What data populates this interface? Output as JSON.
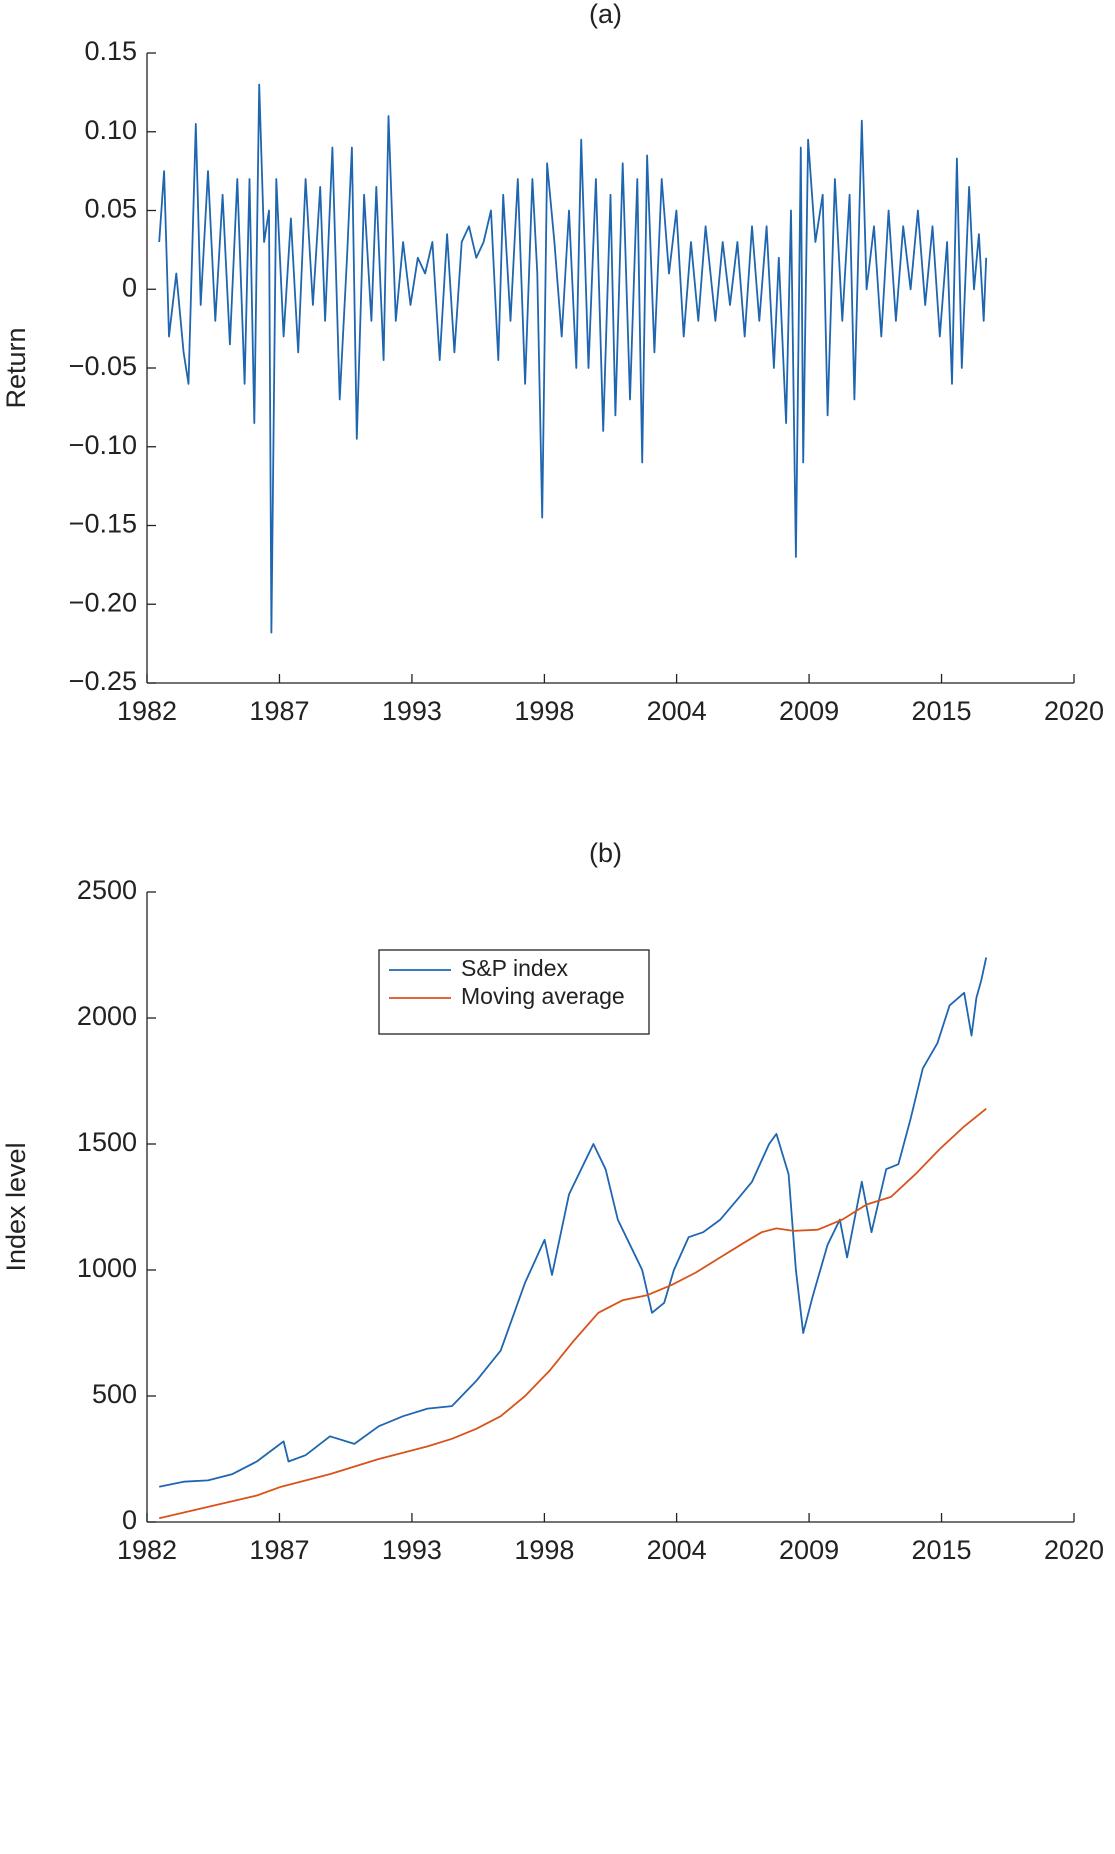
{
  "chart_data": [
    {
      "type": "line",
      "title": "(a)",
      "ylabel": "Return",
      "color": "#1f66b0",
      "xlim": [
        1982,
        2020
      ],
      "xticks": [
        {
          "value": 1982,
          "label": "1982"
        },
        {
          "value": 1987.43,
          "label": "1987"
        },
        {
          "value": 1992.86,
          "label": "1993"
        },
        {
          "value": 1998.29,
          "label": "1998"
        },
        {
          "value": 2003.71,
          "label": "2004"
        },
        {
          "value": 2009.14,
          "label": "2009"
        },
        {
          "value": 2014.57,
          "label": "2015"
        },
        {
          "value": 2020,
          "label": "2020"
        }
      ],
      "ylim": [
        -0.25,
        0.15
      ],
      "yticks": [
        {
          "value": -0.25,
          "label": "−0.25"
        },
        {
          "value": -0.2,
          "label": "−0.20"
        },
        {
          "value": -0.15,
          "label": "−0.15"
        },
        {
          "value": -0.1,
          "label": "−0.10"
        },
        {
          "value": -0.05,
          "label": "−0.05"
        },
        0,
        0.05,
        {
          "value": 0.1,
          "label": "0.10"
        },
        0.15
      ],
      "x": [
        1982.5,
        1982.7,
        1982.9,
        1983.2,
        1983.5,
        1983.7,
        1984.0,
        1984.2,
        1984.5,
        1984.8,
        1985.1,
        1985.4,
        1985.7,
        1986.0,
        1986.2,
        1986.4,
        1986.6,
        1986.8,
        1987.0,
        1987.1,
        1987.3,
        1987.6,
        1987.9,
        1988.2,
        1988.5,
        1988.8,
        1989.1,
        1989.3,
        1989.6,
        1989.9,
        1990.2,
        1990.4,
        1990.6,
        1990.9,
        1991.2,
        1991.4,
        1991.7,
        1991.9,
        1992.2,
        1992.5,
        1992.8,
        1993.1,
        1993.4,
        1993.7,
        1994.0,
        1994.3,
        1994.6,
        1994.9,
        1995.2,
        1995.5,
        1995.8,
        1996.1,
        1996.4,
        1996.6,
        1996.9,
        1997.2,
        1997.5,
        1997.8,
        1998.0,
        1998.2,
        1998.4,
        1998.7,
        1999.0,
        1999.3,
        1999.6,
        1999.8,
        2000.1,
        2000.4,
        2000.7,
        2001.0,
        2001.2,
        2001.5,
        2001.8,
        2002.1,
        2002.3,
        2002.5,
        2002.8,
        2003.1,
        2003.4,
        2003.7,
        2004.0,
        2004.3,
        2004.6,
        2004.9,
        2005.3,
        2005.6,
        2005.9,
        2006.2,
        2006.5,
        2006.8,
        2007.1,
        2007.4,
        2007.7,
        2007.9,
        2008.2,
        2008.4,
        2008.6,
        2008.8,
        2008.9,
        2009.1,
        2009.4,
        2009.7,
        2009.9,
        2010.2,
        2010.5,
        2010.8,
        2011.0,
        2011.3,
        2011.5,
        2011.8,
        2012.1,
        2012.4,
        2012.7,
        2013.0,
        2013.3,
        2013.6,
        2013.9,
        2014.2,
        2014.5,
        2014.8,
        2015.0,
        2015.2,
        2015.4,
        2015.7,
        2015.9,
        2016.1,
        2016.3,
        2016.4
      ],
      "values": [
        0.03,
        0.075,
        -0.03,
        0.01,
        -0.04,
        -0.06,
        0.105,
        -0.01,
        0.075,
        -0.02,
        0.06,
        -0.035,
        0.07,
        -0.06,
        0.07,
        -0.085,
        0.13,
        0.03,
        0.05,
        -0.218,
        0.07,
        -0.03,
        0.045,
        -0.04,
        0.07,
        -0.01,
        0.065,
        -0.02,
        0.09,
        -0.07,
        0.02,
        0.09,
        -0.095,
        0.06,
        -0.02,
        0.065,
        -0.045,
        0.11,
        -0.02,
        0.03,
        -0.01,
        0.02,
        0.01,
        0.03,
        -0.045,
        0.035,
        -0.04,
        0.03,
        0.04,
        0.02,
        0.03,
        0.05,
        -0.045,
        0.06,
        -0.02,
        0.07,
        -0.06,
        0.07,
        0.01,
        -0.145,
        0.08,
        0.03,
        -0.03,
        0.05,
        -0.05,
        0.095,
        -0.05,
        0.07,
        -0.09,
        0.06,
        -0.08,
        0.08,
        -0.07,
        0.07,
        -0.11,
        0.085,
        -0.04,
        0.07,
        0.01,
        0.05,
        -0.03,
        0.03,
        -0.02,
        0.04,
        -0.02,
        0.03,
        -0.01,
        0.03,
        -0.03,
        0.04,
        -0.02,
        0.04,
        -0.05,
        0.02,
        -0.085,
        0.05,
        -0.17,
        0.09,
        -0.11,
        0.095,
        0.03,
        0.06,
        -0.08,
        0.07,
        -0.02,
        0.06,
        -0.07,
        0.107,
        0,
        0.04,
        -0.03,
        0.05,
        -0.02,
        0.04,
        0,
        0.05,
        -0.01,
        0.04,
        -0.03,
        0.03,
        -0.06,
        0.083,
        -0.05,
        0.065,
        0,
        0.035,
        -0.02,
        0.02
      ]
    },
    {
      "type": "line",
      "title": "(b)",
      "ylabel": "Index level",
      "legend": "upper center",
      "xlim": [
        1982,
        2020
      ],
      "xticks": [
        {
          "value": 1982,
          "label": "1982"
        },
        {
          "value": 1987.43,
          "label": "1987"
        },
        {
          "value": 1992.86,
          "label": "1993"
        },
        {
          "value": 1998.29,
          "label": "1998"
        },
        {
          "value": 2003.71,
          "label": "2004"
        },
        {
          "value": 2009.14,
          "label": "2009"
        },
        {
          "value": 2014.57,
          "label": "2015"
        },
        {
          "value": 2020,
          "label": "2020"
        }
      ],
      "ylim": [
        0,
        2500
      ],
      "yticks": [
        0,
        500,
        1000,
        1500,
        2000,
        2500
      ],
      "series": [
        {
          "name": "S&P index",
          "color": "#1f66b0",
          "x": [
            1982.5,
            1983.5,
            1984.5,
            1985.5,
            1986.5,
            1987.6,
            1987.8,
            1988.5,
            1989.5,
            1990.5,
            1991.5,
            1992.5,
            1993.5,
            1994.5,
            1995.5,
            1996.5,
            1997.5,
            1998.3,
            1998.6,
            1999.3,
            1999.8,
            2000.3,
            2000.8,
            2001.3,
            2001.8,
            2002.3,
            2002.7,
            2003.2,
            2003.6,
            2004.2,
            2004.8,
            2005.5,
            2006.2,
            2006.8,
            2007.5,
            2007.8,
            2008.3,
            2008.6,
            2008.9,
            2009.3,
            2009.9,
            2010.4,
            2010.7,
            2011.3,
            2011.7,
            2012.3,
            2012.8,
            2013.3,
            2013.8,
            2014.4,
            2014.9,
            2015.5,
            2015.8,
            2016.0,
            2016.2,
            2016.4
          ],
          "values": [
            140,
            160,
            165,
            190,
            240,
            320,
            240,
            265,
            340,
            310,
            380,
            420,
            450,
            460,
            560,
            680,
            950,
            1120,
            980,
            1300,
            1400,
            1500,
            1400,
            1200,
            1100,
            1000,
            830,
            870,
            1000,
            1130,
            1150,
            1200,
            1280,
            1350,
            1500,
            1540,
            1380,
            1000,
            750,
            900,
            1100,
            1200,
            1050,
            1350,
            1150,
            1400,
            1420,
            1600,
            1800,
            1900,
            2050,
            2100,
            1930,
            2080,
            2150,
            2240
          ]
        },
        {
          "name": "Moving average",
          "color": "#d95319",
          "x": [
            1982.5,
            1984.5,
            1986.5,
            1987.5,
            1989.5,
            1991.5,
            1993.5,
            1994.5,
            1995.5,
            1996.5,
            1997.5,
            1998.5,
            1999.5,
            2000.5,
            2001.5,
            2002.5,
            2003.5,
            2004.5,
            2005.5,
            2006.5,
            2007.2,
            2007.8,
            2008.5,
            2009.5,
            2010.5,
            2011.5,
            2012.5,
            2013.5,
            2014.5,
            2015.5,
            2016.4
          ],
          "values": [
            15,
            60,
            105,
            140,
            190,
            250,
            300,
            330,
            370,
            420,
            500,
            600,
            720,
            830,
            880,
            900,
            940,
            990,
            1050,
            1110,
            1150,
            1165,
            1155,
            1160,
            1200,
            1260,
            1290,
            1380,
            1480,
            1570,
            1640
          ]
        }
      ]
    }
  ]
}
